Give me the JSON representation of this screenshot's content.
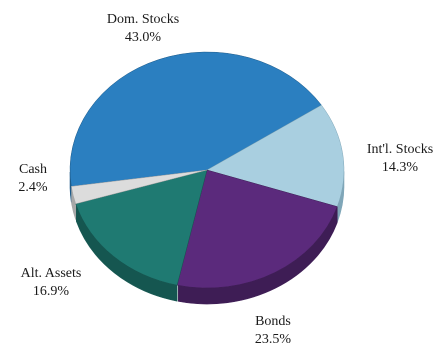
{
  "chart_data": {
    "type": "pie",
    "style": "3d",
    "slices": [
      {
        "label": "Dom. Stocks",
        "value": 43.0,
        "value_text": "43.0%",
        "color": "#2b7fc0",
        "side_color": "#1d5a88"
      },
      {
        "label": "Int'l. Stocks",
        "value": 14.3,
        "value_text": "14.3%",
        "color": "#a9cfe0",
        "side_color": "#7fa6b8"
      },
      {
        "label": "Bonds",
        "value": 23.5,
        "value_text": "23.5%",
        "color": "#5b2a7c",
        "side_color": "#3e1d55"
      },
      {
        "label": "Alt. Assets",
        "value": 16.9,
        "value_text": "16.9%",
        "color": "#1f7a72",
        "side_color": "#155650"
      },
      {
        "label": "Cash",
        "value": 2.4,
        "value_text": "2.4%",
        "color": "#dcdcdc",
        "side_color": "#a8a8a8"
      }
    ]
  }
}
